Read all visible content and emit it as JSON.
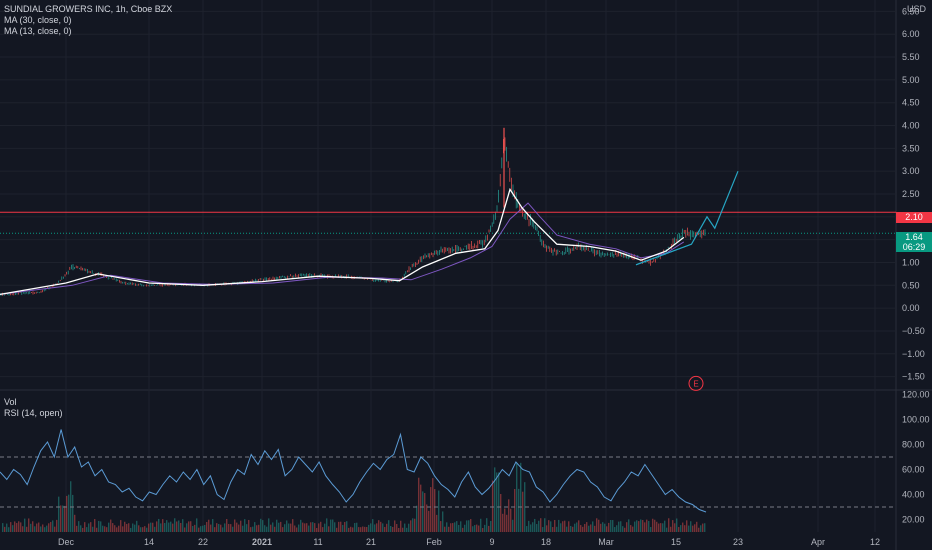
{
  "header": {
    "symbol_line": "SUNDIAL GROWERS INC, 1h, Cboe BZX",
    "indicators": [
      "MA (30, close, 0)",
      "MA (13, close, 0)"
    ],
    "currency": "USD"
  },
  "lower_pane": {
    "indicators": [
      "Vol",
      "RSI (14, open)"
    ]
  },
  "colors": {
    "background": "#131722",
    "grid": "#1e222d",
    "candle_up": "#26a69a",
    "candle_down": "#ef5350",
    "ma30": "#7e57c2",
    "ma13": "#ffffff",
    "resistance": "#f23645",
    "projection": "#26a6c4",
    "rsi": "#5b9bd5",
    "price_tag": "#089981"
  },
  "chart_data": {
    "type": "line",
    "title": "SUNDIAL GROWERS INC, 1h, Cboe BZX",
    "x_ticks": [
      "Dec",
      "14",
      "22",
      "2021",
      "11",
      "21",
      "Feb",
      "9",
      "18",
      "Mar",
      "15",
      "23",
      "Apr",
      "12"
    ],
    "y_ticks": [
      "6.50",
      "6.00",
      "5.50",
      "5.00",
      "4.50",
      "4.00",
      "3.50",
      "3.00",
      "2.50",
      "2.00",
      "1.50",
      "1.00",
      "0.50",
      "0.00",
      "−0.50",
      "−1.00",
      "−1.50"
    ],
    "ylim": [
      -1.75,
      6.75
    ],
    "series": [
      {
        "name": "Price",
        "x": [
          "Nov 23",
          "Nov 28",
          "Nov 30",
          "Dec 2",
          "Dec 6",
          "Dec 10",
          "Dec 14",
          "Dec 18",
          "Dec 22",
          "Dec 28",
          "2021-01-03",
          "Jan 8",
          "Jan 13",
          "Jan 18",
          "Jan 23",
          "Jan 26",
          "Jan 28",
          "Jan 30",
          "Feb 2",
          "Feb 5",
          "Feb 8",
          "Feb 9",
          "Feb 10",
          "Feb 11",
          "Feb 12",
          "Feb 13",
          "Feb 14",
          "Feb 16",
          "Feb 18",
          "Feb 21",
          "Feb 24",
          "Mar 1",
          "Mar 4",
          "Mar 7",
          "Mar 10",
          "Mar 13",
          "Mar 15",
          "Mar 16"
        ],
        "y": [
          0.3,
          0.35,
          0.55,
          0.9,
          0.75,
          0.55,
          0.5,
          0.52,
          0.5,
          0.55,
          0.65,
          0.72,
          0.7,
          0.68,
          0.6,
          0.6,
          0.9,
          1.1,
          1.25,
          1.3,
          1.45,
          1.8,
          2.3,
          3.8,
          2.8,
          2.4,
          2.1,
          1.85,
          1.3,
          1.2,
          1.35,
          1.15,
          1.2,
          1.1,
          1.0,
          1.25,
          1.5,
          1.64
        ]
      },
      {
        "name": "MA (13, close, 0)",
        "x": [
          "Nov 23",
          "Dec 1",
          "Dec 6",
          "Dec 14",
          "Dec 22",
          "2021-01-01",
          "Jan 11",
          "Jan 21",
          "Jan 26",
          "Jan 30",
          "Feb 4",
          "Feb 8",
          "Feb 10",
          "Feb 12",
          "Feb 14",
          "Feb 16",
          "Feb 20",
          "Feb 26",
          "Mar 3",
          "Mar 8",
          "Mar 13",
          "Mar 16"
        ],
        "y": [
          0.3,
          0.55,
          0.75,
          0.55,
          0.5,
          0.58,
          0.7,
          0.65,
          0.6,
          0.9,
          1.2,
          1.3,
          1.7,
          2.6,
          2.2,
          1.9,
          1.4,
          1.35,
          1.25,
          1.05,
          1.25,
          1.55
        ]
      },
      {
        "name": "MA (30, close, 0)",
        "x": [
          "Nov 23",
          "Dec 2",
          "Dec 8",
          "Dec 16",
          "Dec 24",
          "2021-01-03",
          "Jan 13",
          "Jan 23",
          "Jan 28",
          "Feb 2",
          "Feb 6",
          "Feb 9",
          "Feb 12",
          "Feb 15",
          "Feb 17",
          "Feb 20",
          "Feb 26",
          "Mar 3",
          "Mar 8",
          "Mar 13",
          "Mar 16"
        ],
        "y": [
          0.3,
          0.5,
          0.72,
          0.55,
          0.52,
          0.55,
          0.68,
          0.66,
          0.62,
          0.85,
          1.1,
          1.35,
          1.95,
          2.3,
          2.0,
          1.6,
          1.4,
          1.3,
          1.1,
          1.2,
          1.45
        ]
      },
      {
        "name": "Projection",
        "x": [
          "Mar 7",
          "Mar 17",
          "Mar 19",
          "Mar 20",
          "Mar 23"
        ],
        "y": [
          0.95,
          1.4,
          2.0,
          1.75,
          3.0
        ]
      }
    ],
    "horizontal_lines": [
      {
        "label": "2.10",
        "y": 2.1,
        "style": "solid"
      },
      {
        "label": "1.64",
        "y": 1.64,
        "style": "dotted"
      }
    ],
    "last_price": "1.64",
    "countdown": "06:29",
    "resistance_label": "2.10",
    "earnings_marker": "E",
    "rsi": {
      "y_ticks": [
        "120.00",
        "100.00",
        "80.00",
        "60.00",
        "40.00",
        "20.00"
      ],
      "ylim": [
        10,
        122
      ],
      "upper_band": 70,
      "lower_band": 30,
      "values": [
        58,
        52,
        60,
        56,
        48,
        62,
        75,
        82,
        70,
        92,
        70,
        78,
        62,
        66,
        55,
        60,
        50,
        48,
        42,
        45,
        38,
        35,
        42,
        40,
        48,
        55,
        50,
        58,
        52,
        60,
        48,
        55,
        40,
        36,
        50,
        60,
        56,
        72,
        64,
        75,
        68,
        76,
        55,
        60,
        70,
        64,
        58,
        66,
        55,
        48,
        42,
        34,
        40,
        50,
        58,
        65,
        60,
        68,
        72,
        88,
        60,
        58,
        70,
        65,
        55,
        48,
        44,
        38,
        50,
        58,
        46,
        40,
        45,
        52,
        60,
        55,
        66,
        60,
        58,
        46,
        42,
        34,
        40,
        48,
        55,
        60,
        58,
        50,
        46,
        38,
        35,
        44,
        50,
        58,
        55,
        64,
        56,
        48,
        40,
        44,
        38,
        34,
        32,
        28,
        26
      ]
    }
  }
}
